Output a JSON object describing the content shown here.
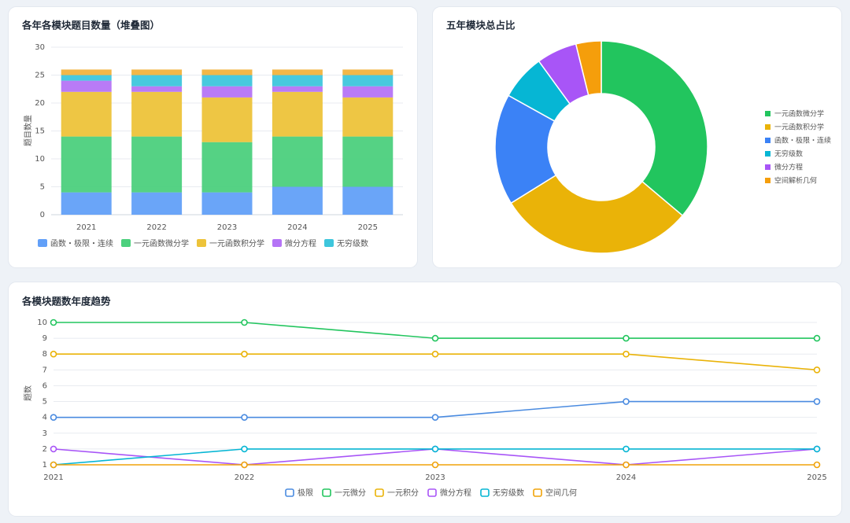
{
  "chart_data": [
    {
      "type": "bar",
      "stacked": true,
      "title": "各年各模块题目数量（堆叠图）",
      "y_label": "题目数量",
      "categories": [
        "2021",
        "2022",
        "2023",
        "2024",
        "2025"
      ],
      "series": [
        {
          "name": "函数・极限・连续",
          "color": "#62a0f8",
          "values": [
            4,
            4,
            4,
            5,
            5
          ]
        },
        {
          "name": "一元函数微分学",
          "color": "#4cd07d",
          "values": [
            10,
            10,
            9,
            9,
            9
          ]
        },
        {
          "name": "一元函数积分学",
          "color": "#edc33a",
          "values": [
            8,
            8,
            8,
            8,
            7
          ]
        },
        {
          "name": "微分方程",
          "color": "#b574f6",
          "values": [
            2,
            1,
            2,
            1,
            2
          ]
        },
        {
          "name": "无穷级数",
          "color": "#3ec6dc",
          "values": [
            1,
            2,
            2,
            2,
            2
          ]
        },
        {
          "color": "#f2b33d",
          "values": [
            1,
            1,
            1,
            1,
            1
          ]
        }
      ],
      "ylim": [
        0,
        30
      ],
      "yticks": [
        0,
        5,
        10,
        15,
        20,
        25,
        30
      ],
      "grid": true
    },
    {
      "type": "pie",
      "donut": true,
      "title": "五年模块总占比",
      "categories": [
        "一元函数微分学",
        "一元函数积分学",
        "函数・极限・连续",
        "无穷级数",
        "微分方程",
        "空间解析几何"
      ],
      "values": [
        47,
        39,
        22,
        9,
        8,
        5
      ],
      "colors": [
        "#22c55e",
        "#eab308",
        "#3b82f6",
        "#06b6d4",
        "#a855f7",
        "#f59e0b"
      ]
    },
    {
      "type": "line",
      "title": "各模块题数年度趋势",
      "y_label": "题数",
      "categories": [
        "2021",
        "2022",
        "2023",
        "2024",
        "2025"
      ],
      "series": [
        {
          "name": "极限",
          "color": "#4a8be0",
          "values": [
            4,
            4,
            4,
            5,
            5
          ]
        },
        {
          "name": "一元微分",
          "color": "#22c55e",
          "values": [
            10,
            10,
            9,
            9,
            9
          ]
        },
        {
          "name": "一元积分",
          "color": "#eab308",
          "values": [
            8,
            8,
            8,
            8,
            7
          ]
        },
        {
          "name": "微分方程",
          "color": "#a855f7",
          "values": [
            2,
            1,
            2,
            1,
            2
          ]
        },
        {
          "name": "无穷级数",
          "color": "#06b6d4",
          "values": [
            1,
            2,
            2,
            2,
            2
          ]
        },
        {
          "name": "空间几何",
          "color": "#f0a30a",
          "values": [
            1,
            1,
            1,
            1,
            1
          ]
        }
      ],
      "ylim": [
        1,
        10
      ],
      "yticks": [
        1,
        2,
        3,
        4,
        5,
        6,
        7,
        8,
        9,
        10
      ],
      "grid": true
    }
  ]
}
